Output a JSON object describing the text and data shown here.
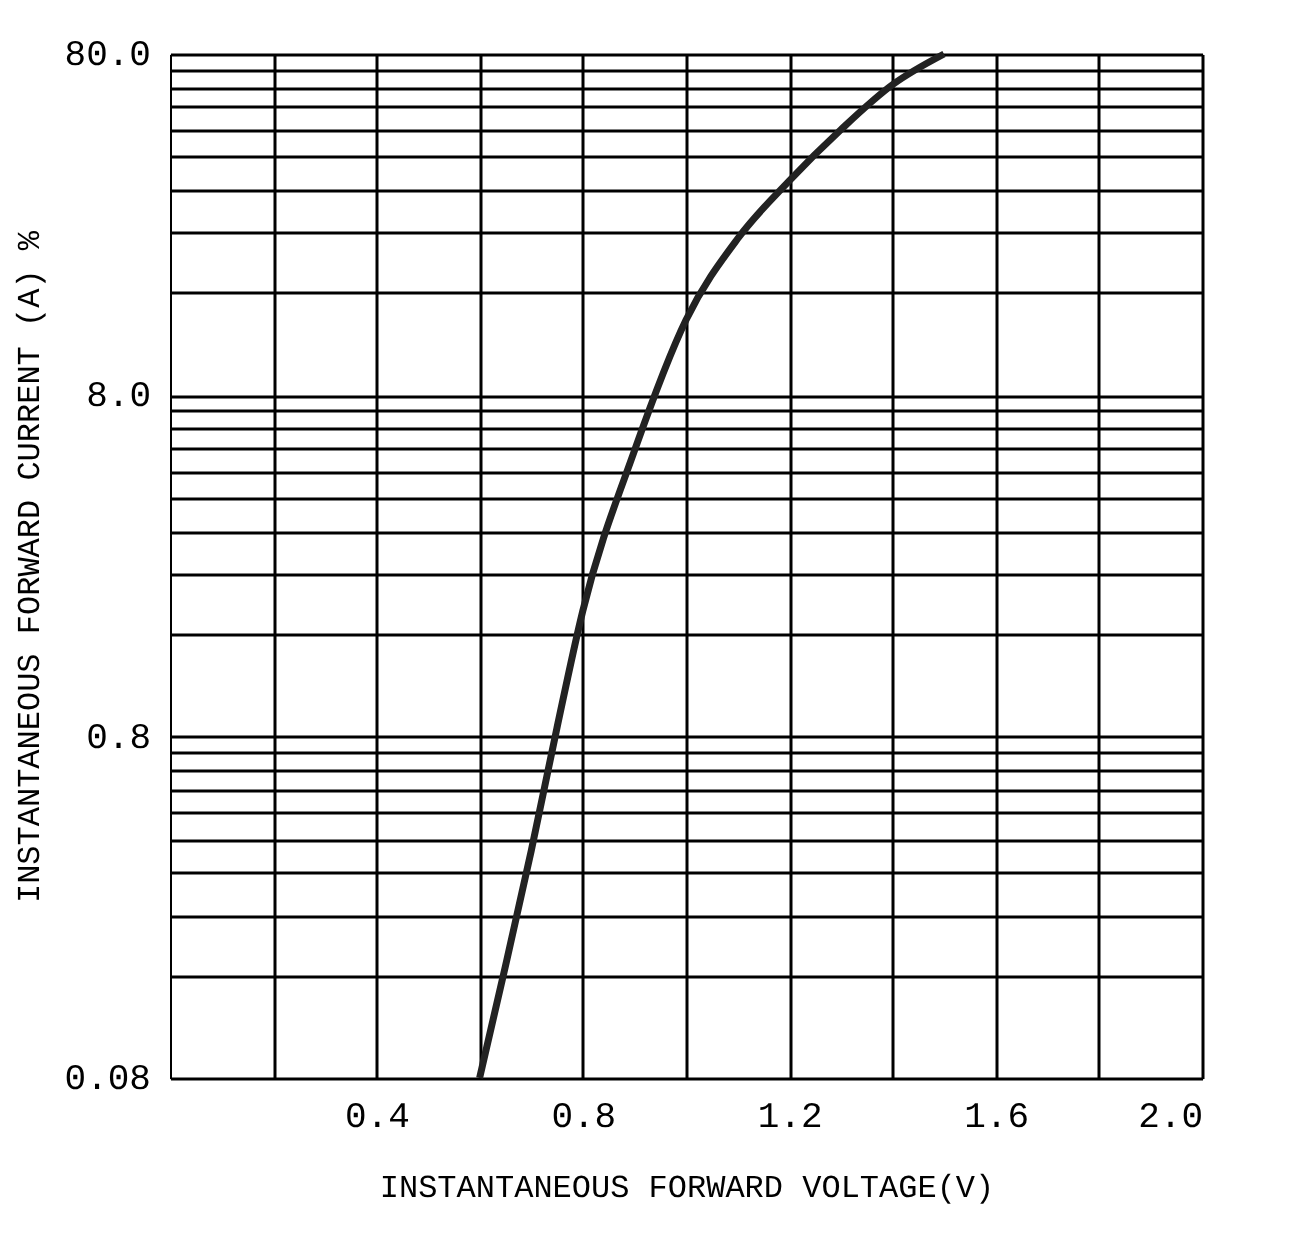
{
  "chart_data": {
    "type": "line",
    "xlabel": "INSTANTANEOUS FORWARD VOLTAGE(V)",
    "ylabel": "INSTANTANEOUS FORWARD CURRENT (A) %",
    "x": [
      0.6,
      0.65,
      0.7,
      0.75,
      0.8,
      0.9,
      1.0,
      1.1,
      1.2,
      1.3,
      1.4,
      1.5
    ],
    "series": [
      {
        "color": "#222222",
        "values": [
          0.08,
          0.17,
          0.37,
          0.85,
          1.87,
          5.5,
          13.3,
          23,
          34,
          48,
          65,
          80
        ]
      }
    ],
    "log": "y",
    "grid": true,
    "marker": "none",
    "line_style": "solid",
    "xlim": [
      0,
      2.0
    ],
    "xticks": [
      {
        "value": 0.2,
        "label": null
      },
      0.4,
      {
        "value": 0.6,
        "label": null
      },
      0.8,
      {
        "value": 1.0,
        "label": null
      },
      1.2,
      {
        "value": 1.4,
        "label": null
      },
      1.6,
      {
        "value": 1.8,
        "label": null
      },
      {
        "value": 2.0,
        "label": "2.0"
      }
    ],
    "ylim": [
      0.08,
      80
    ],
    "yticks": [
      0.08,
      {
        "value": 0.16,
        "label": null
      },
      {
        "value": 0.24,
        "label": null
      },
      {
        "value": 0.32,
        "label": null
      },
      {
        "value": 0.4,
        "label": null
      },
      {
        "value": 0.48,
        "label": null
      },
      {
        "value": 0.56,
        "label": null
      },
      {
        "value": 0.64,
        "label": null
      },
      {
        "value": 0.72,
        "label": null
      },
      0.8,
      {
        "value": 1.6,
        "label": null
      },
      {
        "value": 2.4,
        "label": null
      },
      {
        "value": 3.2,
        "label": null
      },
      {
        "value": 4,
        "label": null
      },
      {
        "value": 4.8,
        "label": null
      },
      {
        "value": 5.6,
        "label": null
      },
      {
        "value": 6.4,
        "label": null
      },
      {
        "value": 7.2,
        "label": null
      },
      {
        "value": 8,
        "label": "8.0"
      },
      {
        "value": 16,
        "label": null
      },
      {
        "value": 24,
        "label": null
      },
      {
        "value": 32,
        "label": null
      },
      {
        "value": 40,
        "label": null
      },
      {
        "value": 48,
        "label": null
      },
      {
        "value": 56,
        "label": null
      },
      {
        "value": 64,
        "label": null
      },
      {
        "value": 72,
        "label": null
      },
      {
        "value": 80,
        "label": "80.0"
      }
    ]
  }
}
